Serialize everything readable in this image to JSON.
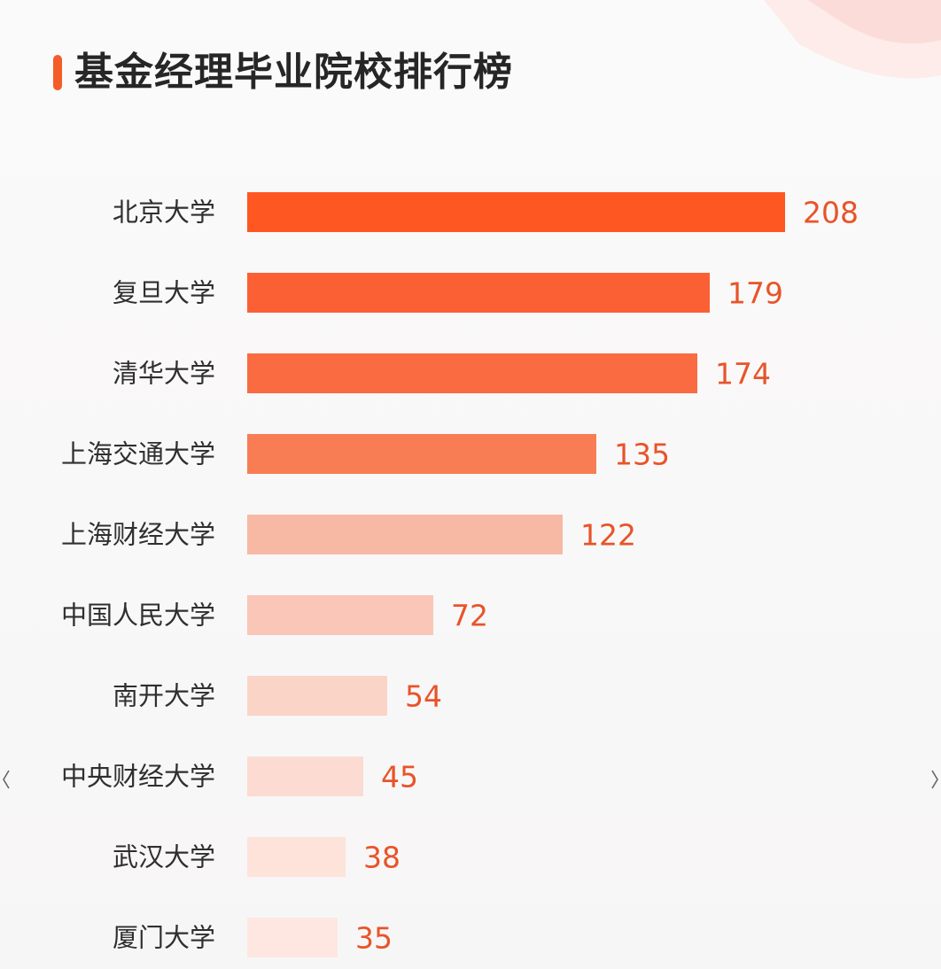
{
  "page": {
    "title": "基金经理毕业院校排行榜"
  },
  "colors": {
    "accent": "#f45d27",
    "bar_shades": [
      "#ff5722",
      "#fb6035",
      "#fa6b42",
      "#f97d54",
      "#f7b9a4",
      "#f9c6b7",
      "#fbd4c8",
      "#fcdcd2",
      "#fde3da",
      "#fde7e0"
    ],
    "value_text": "#e8542a",
    "label_text": "#2f2f2f"
  },
  "icons": {
    "left_edge": "chevron-left-icon",
    "right_edge": "chevron-right-icon"
  },
  "chart_data": {
    "type": "bar",
    "orientation": "horizontal",
    "title": "基金经理毕业院校排行榜",
    "categories": [
      "北京大学",
      "复旦大学",
      "清华大学",
      "上海交通大学",
      "上海财经大学",
      "中国人民大学",
      "南开大学",
      "中央财经大学",
      "武汉大学",
      "厦门大学"
    ],
    "values": [
      208,
      179,
      174,
      135,
      122,
      72,
      54,
      45,
      38,
      35
    ],
    "xlim": [
      0,
      208
    ],
    "grid": false,
    "legend": "none"
  }
}
